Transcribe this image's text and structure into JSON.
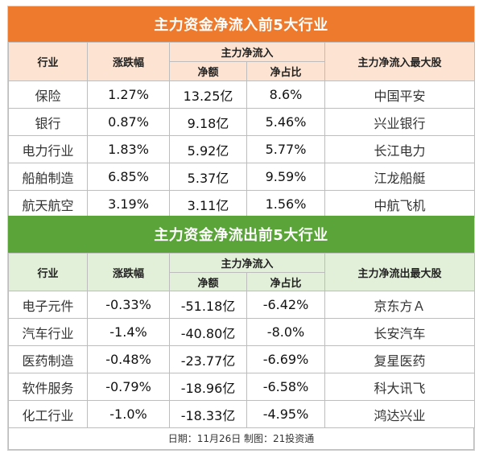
{
  "inflow": {
    "title": "主力资金净流入前5大行业",
    "headers": {
      "industry": "行业",
      "change": "涨跌幅",
      "net_group": "主力净流入",
      "net_amount": "净额",
      "net_ratio": "净占比",
      "top_stock": "主力净流入最大股"
    },
    "rows": [
      {
        "industry": "保险",
        "change": "1.27%",
        "amount": "13.25亿",
        "ratio": "8.6%",
        "stock": "中国平安"
      },
      {
        "industry": "银行",
        "change": "0.87%",
        "amount": "9.18亿",
        "ratio": "5.46%",
        "stock": "兴业银行"
      },
      {
        "industry": "电力行业",
        "change": "1.83%",
        "amount": "5.92亿",
        "ratio": "5.77%",
        "stock": "长江电力"
      },
      {
        "industry": "船舶制造",
        "change": "6.85%",
        "amount": "5.37亿",
        "ratio": "9.59%",
        "stock": "江龙船艇"
      },
      {
        "industry": "航天航空",
        "change": "3.19%",
        "amount": "3.11亿",
        "ratio": "1.56%",
        "stock": "中航飞机"
      }
    ]
  },
  "outflow": {
    "title": "主力资金净流出前5大行业",
    "headers": {
      "industry": "行业",
      "change": "涨跌幅",
      "net_group": "主力净流入",
      "net_amount": "净额",
      "net_ratio": "净占比",
      "top_stock": "主力净流出最大股"
    },
    "rows": [
      {
        "industry": "电子元件",
        "change": "-0.33%",
        "amount": "-51.18亿",
        "ratio": "-6.42%",
        "stock": "京东方Ａ"
      },
      {
        "industry": "汽车行业",
        "change": "-1.4%",
        "amount": "-40.80亿",
        "ratio": "-8.0%",
        "stock": "长安汽车"
      },
      {
        "industry": "医药制造",
        "change": "-0.48%",
        "amount": "-23.77亿",
        "ratio": "-6.69%",
        "stock": "复星医药"
      },
      {
        "industry": "软件服务",
        "change": "-0.79%",
        "amount": "-18.96亿",
        "ratio": "-6.58%",
        "stock": "科大讯飞"
      },
      {
        "industry": "化工行业",
        "change": "-1.0%",
        "amount": "-18.33亿",
        "ratio": "-4.95%",
        "stock": "鸿达兴业"
      }
    ]
  },
  "footer": "日期：11月26日 制图：21投资通",
  "colors": {
    "inflow_banner": "#ee7a2e",
    "inflow_header": "#fde4d2",
    "outflow_banner": "#5aa43a",
    "outflow_header": "#e3f0d9"
  }
}
